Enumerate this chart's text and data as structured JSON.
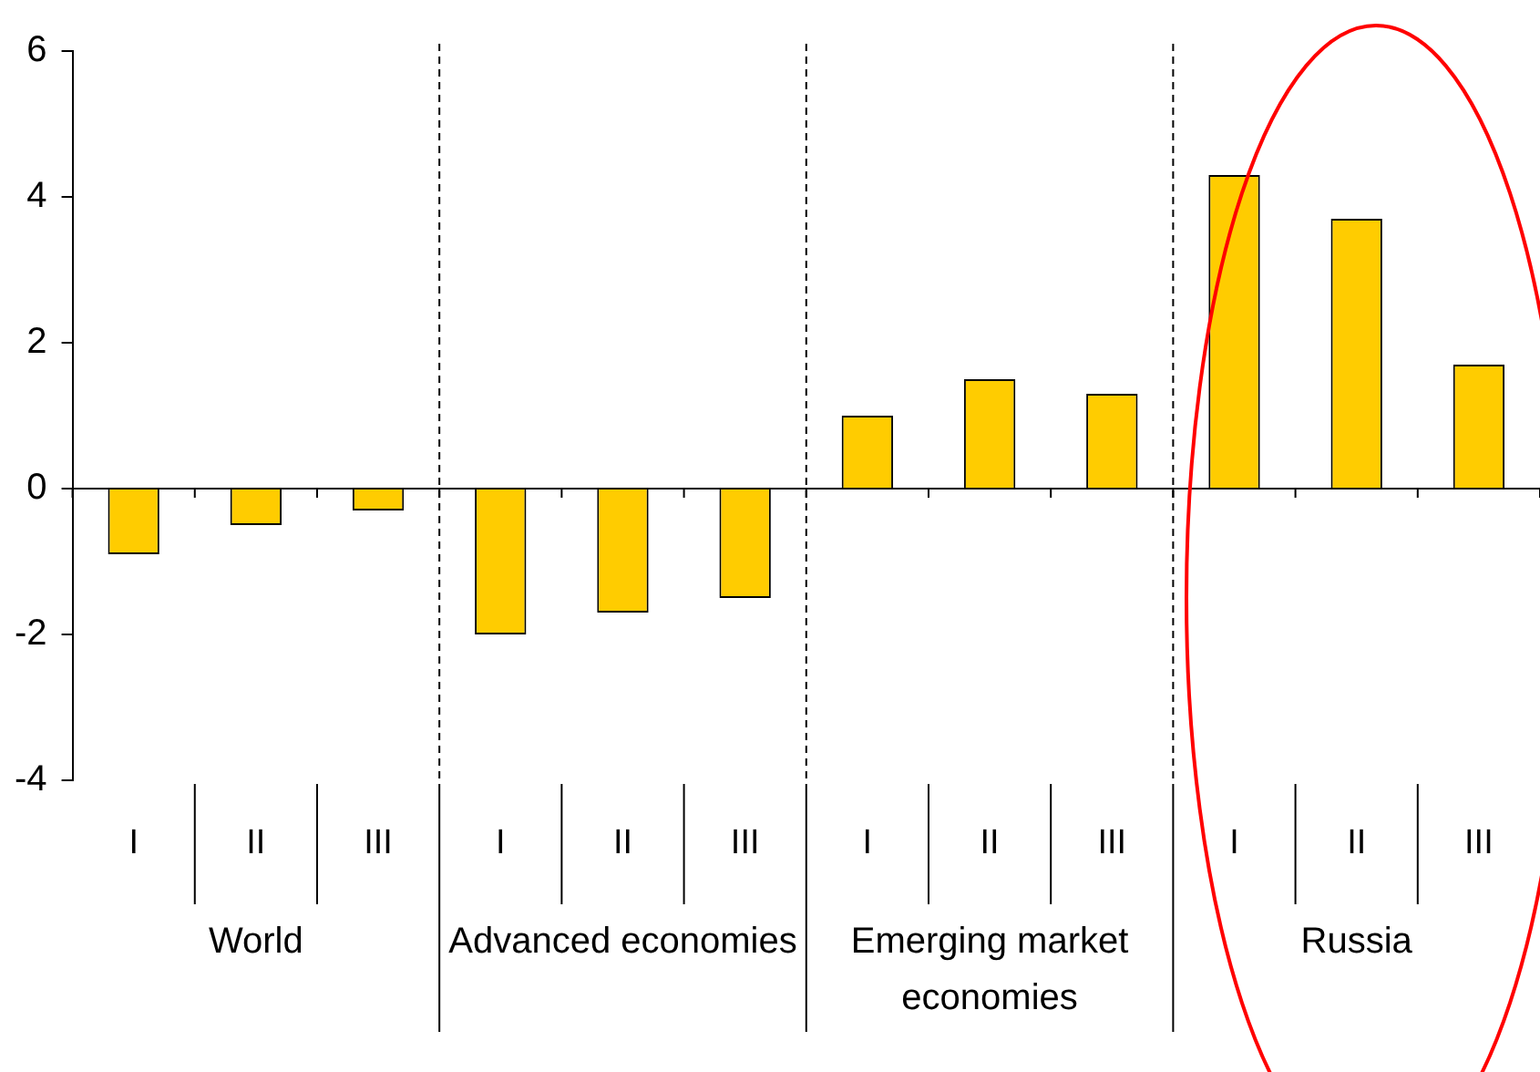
{
  "chart_data": {
    "type": "bar",
    "categories": [
      "I",
      "II",
      "III",
      "I",
      "II",
      "III",
      "I",
      "II",
      "III",
      "I",
      "II",
      "III"
    ],
    "values": [
      -0.9,
      -0.5,
      -0.3,
      -2.0,
      -1.7,
      -1.5,
      1.0,
      1.5,
      1.3,
      4.3,
      3.7,
      1.7
    ],
    "color": "#ffcc00",
    "ylim": [
      -4,
      6
    ],
    "yticks": [
      -4,
      -2,
      0,
      2,
      4,
      6
    ],
    "grid": false,
    "legend": false,
    "annotations": [
      "World",
      "Advanced economies",
      "Emerging market economies",
      "Russia"
    ]
  }
}
